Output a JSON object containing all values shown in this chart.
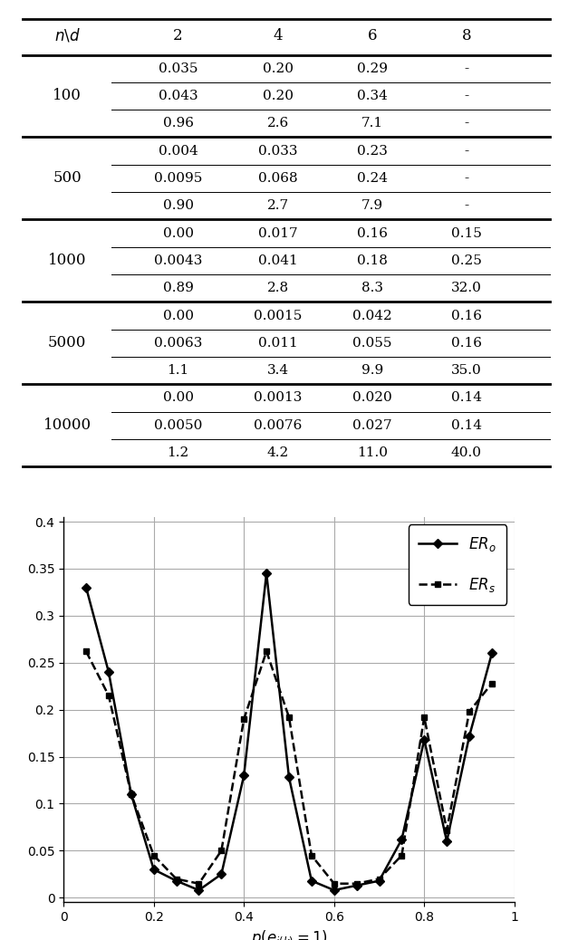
{
  "table": {
    "rows": [
      {
        "n": "100",
        "data": [
          [
            "0.035",
            "0.20",
            "0.29",
            "-"
          ],
          [
            "0.043",
            "0.20",
            "0.34",
            "-"
          ],
          [
            "0.96",
            "2.6",
            "7.1",
            "-"
          ]
        ]
      },
      {
        "n": "500",
        "data": [
          [
            "0.004",
            "0.033",
            "0.23",
            "-"
          ],
          [
            "0.0095",
            "0.068",
            "0.24",
            "-"
          ],
          [
            "0.90",
            "2.7",
            "7.9",
            "-"
          ]
        ]
      },
      {
        "n": "1000",
        "data": [
          [
            "0.00",
            "0.017",
            "0.16",
            "0.15"
          ],
          [
            "0.0043",
            "0.041",
            "0.18",
            "0.25"
          ],
          [
            "0.89",
            "2.8",
            "8.3",
            "32.0"
          ]
        ]
      },
      {
        "n": "5000",
        "data": [
          [
            "0.00",
            "0.0015",
            "0.042",
            "0.16"
          ],
          [
            "0.0063",
            "0.011",
            "0.055",
            "0.16"
          ],
          [
            "1.1",
            "3.4",
            "9.9",
            "35.0"
          ]
        ]
      },
      {
        "n": "10000",
        "data": [
          [
            "0.00",
            "0.0013",
            "0.020",
            "0.14"
          ],
          [
            "0.0050",
            "0.0076",
            "0.027",
            "0.14"
          ],
          [
            "1.2",
            "4.2",
            "11.0",
            "40.0"
          ]
        ]
      }
    ]
  },
  "plot": {
    "xlabel": "$p(e_{i(k)}=1)$",
    "xlim": [
      0,
      1
    ],
    "ylim": [
      -0.005,
      0.405
    ],
    "yticks": [
      0,
      0.05,
      0.1,
      0.15,
      0.2,
      0.25,
      0.3,
      0.35,
      0.4
    ],
    "xticks": [
      0,
      0.2,
      0.4,
      0.6,
      0.8,
      1.0
    ],
    "ER_o_x": [
      0.05,
      0.1,
      0.15,
      0.2,
      0.25,
      0.3,
      0.35,
      0.4,
      0.45,
      0.5,
      0.55,
      0.6,
      0.65,
      0.7,
      0.75,
      0.8,
      0.85,
      0.9,
      0.95
    ],
    "ER_o_y": [
      0.33,
      0.24,
      0.11,
      0.03,
      0.018,
      0.008,
      0.025,
      0.13,
      0.345,
      0.128,
      0.018,
      0.008,
      0.013,
      0.018,
      0.062,
      0.168,
      0.06,
      0.172,
      0.26
    ],
    "ER_s_x": [
      0.05,
      0.1,
      0.15,
      0.2,
      0.25,
      0.3,
      0.35,
      0.4,
      0.45,
      0.5,
      0.55,
      0.6,
      0.65,
      0.7,
      0.75,
      0.8,
      0.85,
      0.9,
      0.95
    ],
    "ER_s_y": [
      0.262,
      0.215,
      0.11,
      0.045,
      0.02,
      0.015,
      0.05,
      0.19,
      0.262,
      0.192,
      0.045,
      0.015,
      0.015,
      0.02,
      0.045,
      0.192,
      0.072,
      0.198,
      0.228
    ],
    "grid_color": "#aaaaaa"
  }
}
